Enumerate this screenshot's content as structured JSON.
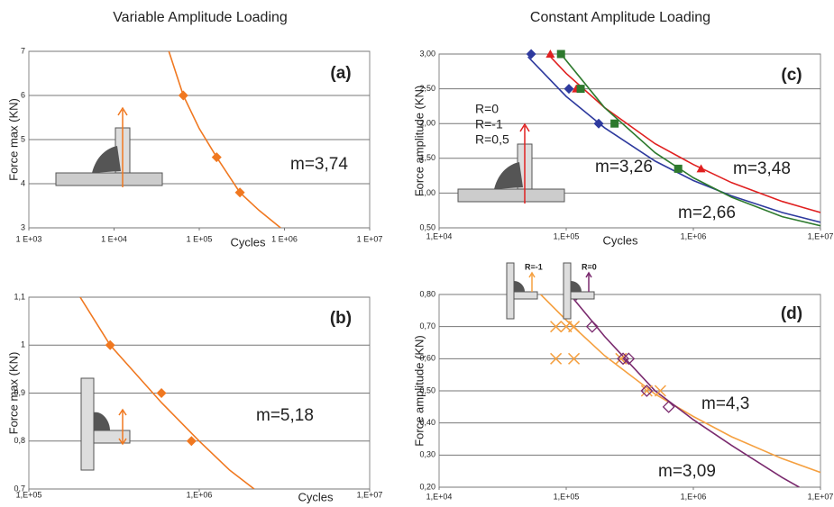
{
  "headers": {
    "left": "Variable Amplitude Loading",
    "right": "Constant Amplitude Loading"
  },
  "chart_data": [
    {
      "type": "scatter",
      "panel_label": "(a)",
      "x_label": "Cycles",
      "y_label": "Force max (KN)",
      "x_scale": "log",
      "grid": true,
      "xlim": [
        1000,
        10000000
      ],
      "xticks": [
        {
          "value": 1000,
          "label": "1 E+03"
        },
        {
          "value": 10000,
          "label": "1 E+04"
        },
        {
          "value": 100000,
          "label": "1 E+05"
        },
        {
          "value": 1000000,
          "label": "1 E+06"
        },
        {
          "value": 10000000,
          "label": "1 E+07"
        }
      ],
      "ylim": [
        3,
        7
      ],
      "yticks": [
        3,
        4,
        5,
        6,
        7
      ],
      "series": [
        {
          "color": "#f07820",
          "marker": "diamond",
          "x": [
            65000,
            160000,
            300000
          ],
          "values": [
            6,
            4.6,
            3.8
          ],
          "curve_x": [
            44000,
            65000,
            100000,
            160000,
            300000,
            500000,
            900000
          ],
          "curve_values": [
            7,
            6,
            5.25,
            4.6,
            3.8,
            3.4,
            3
          ]
        }
      ],
      "annotations": [
        {
          "text": "m=3,74",
          "color": "#f07820"
        }
      ]
    },
    {
      "type": "scatter",
      "panel_label": "(b)",
      "x_label": "Cycles",
      "y_label": "Force max (KN)",
      "x_scale": "log",
      "grid": true,
      "xlim": [
        100000,
        10000000
      ],
      "xticks": [
        {
          "value": 100000,
          "label": "1,E+05"
        },
        {
          "value": 1000000,
          "label": "1,E+06"
        },
        {
          "value": 10000000,
          "label": "1,E+07"
        }
      ],
      "ylim": [
        0.7,
        1.1
      ],
      "yticks": [
        {
          "value": 0.7,
          "label": "0,7"
        },
        {
          "value": 0.8,
          "label": "0,8"
        },
        {
          "value": 0.9,
          "label": "0,9"
        },
        1,
        {
          "value": 1.1,
          "label": "1,1"
        }
      ],
      "series": [
        {
          "color": "#f07820",
          "marker": "diamond",
          "x": [
            300000,
            600000,
            900000
          ],
          "values": [
            1.0,
            0.9,
            0.8
          ],
          "curve_x": [
            200000,
            300000,
            600000,
            1000000,
            1500000,
            2100000
          ],
          "curve_values": [
            1.1,
            1.0,
            0.88,
            0.8,
            0.74,
            0.7
          ]
        }
      ],
      "annotations": [
        {
          "text": "m=5,18",
          "color": "#f07820"
        }
      ]
    },
    {
      "type": "scatter",
      "panel_label": "(c)",
      "x_label": "Cycles",
      "y_label": "Force amplitude (KN)",
      "x_scale": "log",
      "grid": true,
      "xlim": [
        10000,
        10000000
      ],
      "xticks": [
        {
          "value": 10000,
          "label": "1,E+04"
        },
        {
          "value": 100000,
          "label": "1,E+05"
        },
        {
          "value": 1000000,
          "label": "1,E+06"
        },
        {
          "value": 10000000,
          "label": "1,E+07"
        }
      ],
      "ylim": [
        0.5,
        3
      ],
      "yticks": [
        {
          "value": 0.5,
          "label": "0,50"
        },
        {
          "value": 1,
          "label": "1,00"
        },
        {
          "value": 1.5,
          "label": "1,50"
        },
        {
          "value": 2,
          "label": "2,00"
        },
        {
          "value": 2.5,
          "label": "2,50"
        },
        {
          "value": 3,
          "label": "3,00"
        }
      ],
      "series": [
        {
          "name": "R=0",
          "color": "#2e3a9e",
          "marker": "diamond",
          "x": [
            53000,
            105000,
            180000
          ],
          "values": [
            3.0,
            2.5,
            2.0
          ],
          "curve_x": [
            50000,
            100000,
            200000,
            500000,
            1000000,
            2000000,
            5000000,
            10000000
          ],
          "curve_values": [
            2.96,
            2.39,
            1.94,
            1.46,
            1.18,
            0.96,
            0.72,
            0.58
          ]
        },
        {
          "name": "R=-1",
          "color": "#e02020",
          "marker": "triangle",
          "x": [
            75000,
            120000,
            1150000
          ],
          "values": [
            3.0,
            2.5,
            1.35
          ],
          "curve_x": [
            70000,
            100000,
            200000,
            500000,
            1000000,
            2000000,
            5000000,
            10000000
          ],
          "curve_values": [
            3.02,
            2.72,
            2.23,
            1.71,
            1.41,
            1.15,
            0.88,
            0.72
          ]
        },
        {
          "name": "R=0,5",
          "color": "#2e7a2e",
          "marker": "square",
          "x": [
            91000,
            130000,
            240000,
            760000
          ],
          "values": [
            3.0,
            2.5,
            2.0,
            1.35
          ],
          "curve_x": [
            90000,
            200000,
            500000,
            1000000,
            2000000,
            5000000,
            10000000
          ],
          "curve_values": [
            3.01,
            2.23,
            1.58,
            1.22,
            0.94,
            0.66,
            0.53
          ]
        }
      ],
      "annotations": [
        {
          "text": "m=3,26",
          "color": "#2e3a9e"
        },
        {
          "text": "m=3,48",
          "color": "#e02020"
        },
        {
          "text": "m=2,66",
          "color": "#2e7a2e"
        }
      ]
    },
    {
      "type": "scatter",
      "panel_label": "(d)",
      "y_label": "Force amplitude (KN)",
      "x_scale": "log",
      "grid": true,
      "xlim": [
        10000,
        10000000
      ],
      "xticks": [
        {
          "value": 10000,
          "label": "1,E+04"
        },
        {
          "value": 100000,
          "label": "1,E+05"
        },
        {
          "value": 1000000,
          "label": "1,E+06"
        },
        {
          "value": 10000000,
          "label": "1,E+07"
        }
      ],
      "ylim": [
        0.2,
        0.8
      ],
      "yticks": [
        {
          "value": 0.2,
          "label": "0,20"
        },
        {
          "value": 0.3,
          "label": "0,30"
        },
        {
          "value": 0.4,
          "label": "0,40"
        },
        {
          "value": 0.5,
          "label": "0,50"
        },
        {
          "value": 0.6,
          "label": "0,60"
        },
        {
          "value": 0.7,
          "label": "0,70"
        },
        {
          "value": 0.8,
          "label": "0,80"
        }
      ],
      "series": [
        {
          "name": "R=-1",
          "color": "#f5a040",
          "marker": "cross",
          "x": [
            83000,
            100000,
            115000,
            83000,
            115000,
            270000,
            430000,
            550000
          ],
          "values": [
            0.7,
            0.7,
            0.7,
            0.6,
            0.6,
            0.6,
            0.5,
            0.5
          ],
          "curve_x": [
            63000,
            100000,
            200000,
            500000,
            1000000,
            2000000,
            5000000,
            10000000
          ],
          "curve_values": [
            0.8,
            0.72,
            0.61,
            0.49,
            0.42,
            0.357,
            0.289,
            0.246
          ]
        },
        {
          "name": "R=0",
          "color": "#7a2a6e",
          "marker": "diamond-open",
          "x": [
            120000,
            160000,
            280000,
            310000,
            430000,
            640000
          ],
          "values": [
            0.8,
            0.7,
            0.6,
            0.6,
            0.5,
            0.45
          ],
          "curve_x": [
            107000,
            200000,
            500000,
            1000000,
            2000000,
            5000000,
            6800000
          ],
          "curve_values": [
            0.8,
            0.67,
            0.5,
            0.41,
            0.33,
            0.23,
            0.2
          ]
        }
      ],
      "annotations": [
        {
          "text": "m=4,3",
          "color": "#f07820"
        },
        {
          "text": "m=3,09",
          "color": "#7a2a6e"
        }
      ]
    }
  ]
}
